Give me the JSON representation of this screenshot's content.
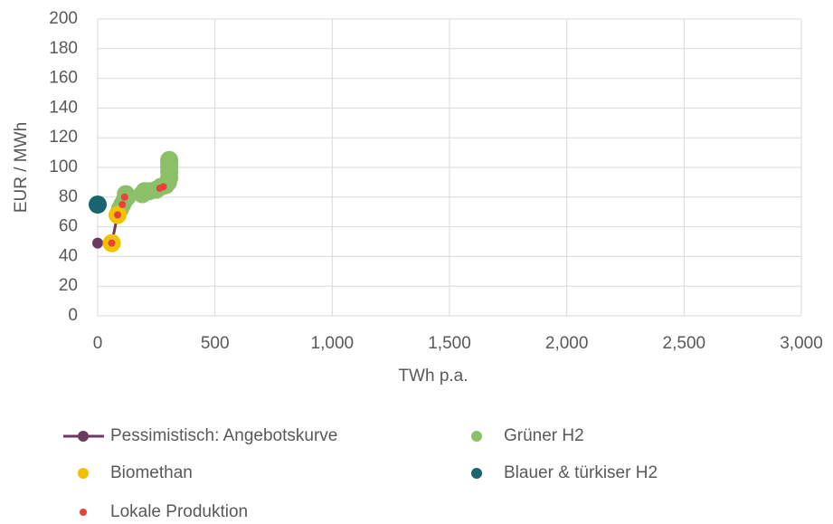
{
  "chart_data": {
    "type": "scatter",
    "xlabel": "TWh p.a.",
    "ylabel": "EUR / MWh",
    "xlim": [
      0,
      3000
    ],
    "xticks": [
      0,
      500,
      {
        "value": 1000,
        "label": "1,000"
      },
      {
        "value": 1500,
        "label": "1,500"
      },
      {
        "value": 2000,
        "label": "2,000"
      },
      {
        "value": 2500,
        "label": "2,500"
      },
      {
        "value": 3000,
        "label": "3,000"
      }
    ],
    "ylim": [
      0,
      200
    ],
    "yticks": [
      0,
      20,
      40,
      60,
      80,
      100,
      120,
      140,
      160,
      180,
      200
    ],
    "grid": true,
    "legend": "bottom",
    "series": [
      {
        "name": "Pessimistisch: Angebotskurve",
        "color": "#6b3a5e",
        "line": true,
        "size": 6,
        "x": [
          0,
          60,
          85,
          110,
          120,
          190,
          270,
          300,
          305,
          305
        ],
        "values": [
          49,
          49,
          68,
          75,
          80,
          83,
          86,
          88,
          95,
          105
        ]
      },
      {
        "name": "Grüner H2",
        "color": "#8cc068",
        "line": false,
        "size": 10,
        "x": [
          95,
          105,
          115,
          120,
          125,
          190,
          200,
          220,
          250,
          270,
          290,
          300,
          305,
          305,
          305,
          305,
          305
        ],
        "values": [
          72,
          75,
          78,
          82,
          80,
          82,
          84,
          84,
          85,
          87,
          88,
          90,
          93,
          97,
          100,
          103,
          105
        ]
      },
      {
        "name": "Biomethan",
        "color": "#f2c200",
        "line": false,
        "size": 10,
        "x": [
          60,
          85
        ],
        "values": [
          49,
          68
        ]
      },
      {
        "name": "Blauer & türkiser H2",
        "color": "#1a6470",
        "line": false,
        "size": 10,
        "x": [
          0
        ],
        "values": [
          75
        ]
      },
      {
        "name": "Lokale Produktion",
        "color": "#e8433a",
        "line": false,
        "size": 4,
        "x": [
          60,
          85,
          105,
          115,
          265,
          280
        ],
        "values": [
          49,
          68,
          75,
          80,
          86,
          87
        ]
      }
    ]
  }
}
